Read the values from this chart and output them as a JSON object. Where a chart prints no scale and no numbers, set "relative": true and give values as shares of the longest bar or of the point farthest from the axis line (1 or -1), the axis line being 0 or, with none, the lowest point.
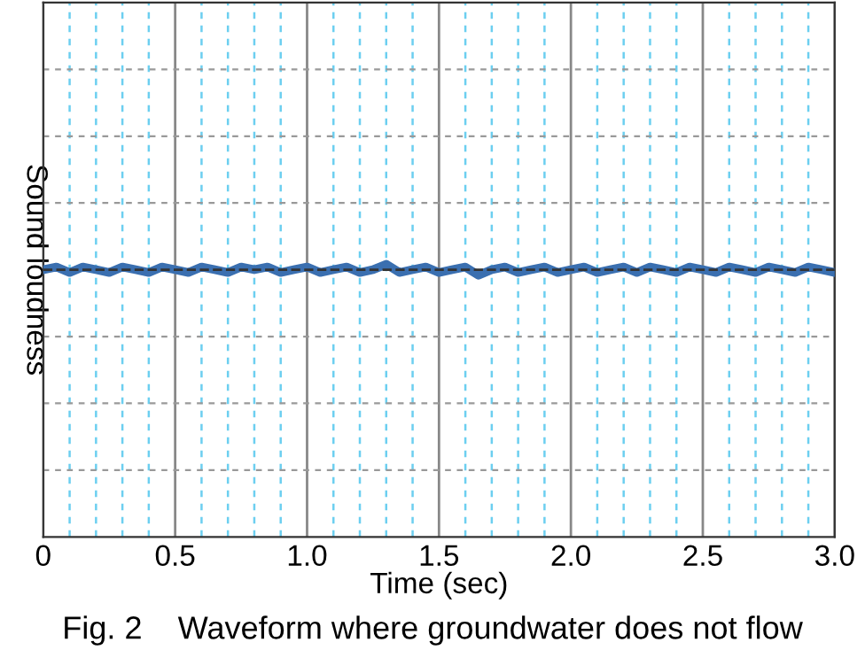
{
  "chart_data": {
    "type": "line",
    "relative": true,
    "title": "Fig. 2    Waveform where groundwater does not flow",
    "xlabel": "Time (sec)",
    "ylabel": "Sound loudness",
    "x": [
      0,
      0.05,
      0.1,
      0.15,
      0.2,
      0.25,
      0.3,
      0.35,
      0.4,
      0.45,
      0.5,
      0.55,
      0.6,
      0.65,
      0.7,
      0.75,
      0.8,
      0.85,
      0.9,
      0.95,
      1.0,
      1.05,
      1.1,
      1.15,
      1.2,
      1.25,
      1.3,
      1.35,
      1.4,
      1.45,
      1.5,
      1.55,
      1.6,
      1.65,
      1.7,
      1.75,
      1.8,
      1.85,
      1.9,
      1.95,
      2.0,
      2.05,
      2.1,
      2.15,
      2.2,
      2.25,
      2.3,
      2.35,
      2.4,
      2.45,
      2.5,
      2.55,
      2.6,
      2.65,
      2.7,
      2.75,
      2.8,
      2.85,
      2.9,
      2.95,
      3.0
    ],
    "series": [
      {
        "color": "#3a6fb0",
        "values": [
          0.98,
          0.99,
          0.97,
          0.99,
          0.98,
          0.97,
          0.99,
          0.98,
          0.97,
          0.99,
          0.98,
          0.97,
          0.99,
          0.98,
          0.97,
          0.99,
          0.98,
          0.99,
          0.97,
          0.98,
          0.99,
          0.97,
          0.98,
          0.99,
          0.97,
          0.98,
          1.0,
          0.97,
          0.98,
          0.99,
          0.97,
          0.98,
          0.99,
          0.96,
          0.98,
          0.99,
          0.97,
          0.98,
          0.99,
          0.97,
          0.98,
          0.99,
          0.97,
          0.98,
          0.99,
          0.97,
          0.99,
          0.98,
          0.97,
          0.99,
          0.98,
          0.97,
          0.99,
          0.98,
          0.97,
          0.99,
          0.98,
          0.97,
          0.99,
          0.98,
          0.97
        ]
      }
    ],
    "xlim": [
      0,
      3.0
    ],
    "xticks": [
      0,
      {
        "value": 0.1,
        "label": null
      },
      {
        "value": 0.2,
        "label": null
      },
      {
        "value": 0.3,
        "label": null
      },
      {
        "value": 0.4,
        "label": null
      },
      0.5,
      {
        "value": 0.6,
        "label": null
      },
      {
        "value": 0.7,
        "label": null
      },
      {
        "value": 0.8,
        "label": null
      },
      {
        "value": 0.9,
        "label": null
      },
      {
        "value": 1.0,
        "label": "1.0"
      },
      {
        "value": 1.1,
        "label": null
      },
      {
        "value": 1.2,
        "label": null
      },
      {
        "value": 1.3,
        "label": null
      },
      {
        "value": 1.4,
        "label": null
      },
      1.5,
      {
        "value": 1.6,
        "label": null
      },
      {
        "value": 1.7,
        "label": null
      },
      {
        "value": 1.8,
        "label": null
      },
      {
        "value": 1.9,
        "label": null
      },
      {
        "value": 2.0,
        "label": "2.0"
      },
      {
        "value": 2.1,
        "label": null
      },
      {
        "value": 2.2,
        "label": null
      },
      {
        "value": 2.3,
        "label": null
      },
      {
        "value": 2.4,
        "label": null
      },
      2.5,
      {
        "value": 2.6,
        "label": null
      },
      {
        "value": 2.7,
        "label": null
      },
      {
        "value": 2.8,
        "label": null
      },
      {
        "value": 2.9,
        "label": null
      },
      {
        "value": 3.0,
        "label": "3.0"
      }
    ],
    "ref_lines": [
      {
        "axis": "y",
        "value": 0.98,
        "color": "#333333",
        "line_style": "dashed"
      }
    ],
    "grid": true,
    "line_style": "solid",
    "marker": "none"
  }
}
